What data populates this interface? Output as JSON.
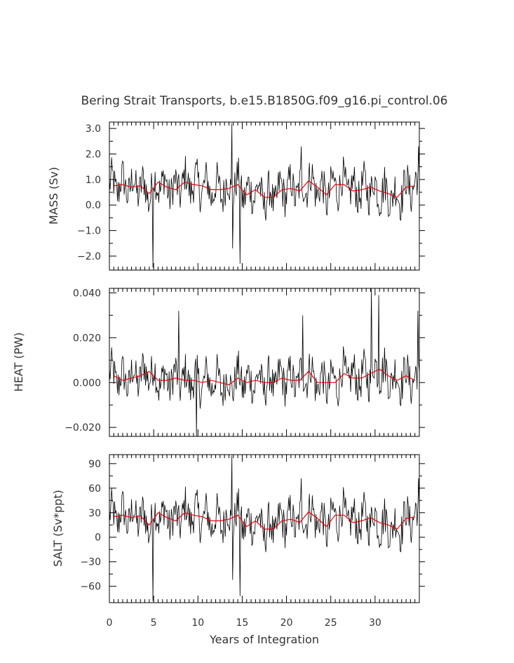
{
  "chart_data": {
    "type": "line",
    "title": "Bering Strait Transports, b.e15.B1850G.f09_g16.pi_control.06",
    "xlabel": "Years of Integration",
    "xlim": [
      0,
      35
    ],
    "xticks": [
      0,
      5,
      10,
      15,
      20,
      25,
      30
    ],
    "grid": false,
    "colors": {
      "monthly": "#000000",
      "annual": "#e8000b"
    },
    "panels": [
      {
        "ylabel": "MASS (Sv)",
        "ylim": [
          -2.55,
          3.25
        ],
        "yticks": [
          -2.0,
          -1.0,
          0.0,
          1.0,
          2.0,
          3.0
        ],
        "yticklabels": [
          "−2.0",
          "−1.0",
          "0.0",
          "1.0",
          "2.0",
          "3.0"
        ],
        "spikes": [
          [
            4.95,
            -2.45
          ],
          [
            13.85,
            3.2
          ],
          [
            13.95,
            -1.7
          ],
          [
            14.75,
            -2.3
          ],
          [
            21.7,
            2.3
          ],
          [
            34.9,
            2.3
          ]
        ],
        "annual": [
          0.75,
          0.8,
          0.7,
          0.75,
          0.45,
          0.9,
          0.7,
          0.6,
          0.9,
          0.8,
          0.75,
          0.6,
          0.6,
          0.65,
          0.8,
          0.4,
          0.6,
          0.3,
          0.3,
          0.6,
          0.65,
          0.55,
          0.95,
          0.7,
          0.4,
          0.8,
          0.8,
          0.55,
          0.6,
          0.7,
          0.55,
          0.45,
          0.3,
          0.7,
          0.75
        ]
      },
      {
        "ylabel": "HEAT (PW)",
        "ylim": [
          -0.024,
          0.042
        ],
        "yticks": [
          -0.02,
          0.0,
          0.02,
          0.04
        ],
        "yticklabels": [
          "−0.020",
          "0.000",
          "0.020",
          "0.040"
        ],
        "spikes": [
          [
            7.8,
            0.032
          ],
          [
            9.8,
            -0.024
          ],
          [
            21.8,
            0.03
          ],
          [
            29.6,
            0.042
          ],
          [
            30.4,
            0.039
          ],
          [
            34.8,
            0.032
          ]
        ],
        "annual": [
          0.003,
          0.001,
          0.002,
          0.003,
          0.005,
          0.001,
          0.001,
          0.002,
          0.001,
          0.001,
          0.0,
          0.001,
          0.0,
          -0.001,
          0.002,
          0.0,
          0.001,
          0.0,
          0.0,
          0.002,
          0.001,
          0.001,
          0.005,
          0.0,
          0.0,
          0.0,
          0.004,
          0.002,
          0.002,
          0.004,
          0.006,
          0.003,
          0.001,
          0.003,
          0.001
        ]
      },
      {
        "ylabel": "SALT (Sv*ppt)",
        "ylim": [
          -80,
          101
        ],
        "yticks": [
          -60,
          -30,
          0,
          30,
          60,
          90
        ],
        "yticklabels": [
          "−60",
          "−30",
          "0",
          "30",
          "60",
          "90"
        ],
        "spikes": [
          [
            4.95,
            -78
          ],
          [
            13.85,
            100
          ],
          [
            13.95,
            -52
          ],
          [
            14.75,
            -72
          ],
          [
            21.7,
            72
          ],
          [
            34.9,
            72
          ]
        ],
        "annual": [
          25,
          27,
          24,
          26,
          15,
          30,
          24,
          20,
          30,
          27,
          25,
          20,
          20,
          22,
          27,
          13,
          20,
          10,
          10,
          20,
          22,
          18,
          31,
          23,
          13,
          27,
          27,
          18,
          20,
          24,
          18,
          15,
          10,
          23,
          25
        ]
      }
    ]
  }
}
